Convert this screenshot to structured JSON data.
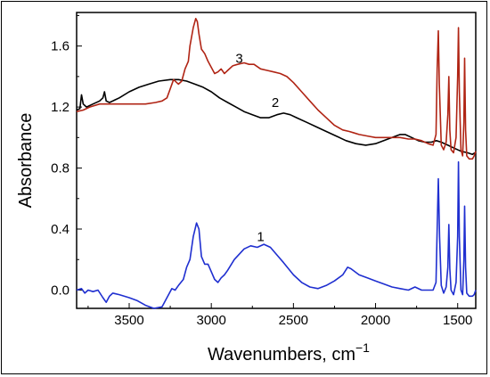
{
  "chart_data": {
    "type": "line",
    "xlabel": "Wavenumbers, cm",
    "xlabel_superscript": "−1",
    "ylabel": "Absorbance",
    "xlim": [
      3820,
      1390
    ],
    "ylim": [
      -0.12,
      1.82
    ],
    "x_reversed": true,
    "x_ticks": [
      3500,
      3000,
      2500,
      2000,
      1500
    ],
    "x_tick_labels": [
      "3500",
      "3000",
      "2500",
      "2000",
      "1500"
    ],
    "y_ticks": [
      0.0,
      0.4,
      0.8,
      1.2,
      1.6
    ],
    "y_tick_labels": [
      "0.0",
      "0.4",
      "0.8",
      "1.2",
      "1.6"
    ],
    "grid": false,
    "series": [
      {
        "label": "1",
        "color": "#1f2fd0",
        "label_at": [
          2700,
          0.32
        ],
        "points": [
          [
            3820,
            0.0
          ],
          [
            3790,
            0.01
          ],
          [
            3770,
            -0.02
          ],
          [
            3750,
            0.0
          ],
          [
            3720,
            -0.01
          ],
          [
            3690,
            0.0
          ],
          [
            3660,
            -0.05
          ],
          [
            3640,
            -0.08
          ],
          [
            3620,
            -0.04
          ],
          [
            3600,
            -0.02
          ],
          [
            3560,
            -0.03
          ],
          [
            3500,
            -0.05
          ],
          [
            3450,
            -0.07
          ],
          [
            3400,
            -0.1
          ],
          [
            3350,
            -0.12
          ],
          [
            3300,
            -0.11
          ],
          [
            3270,
            -0.05
          ],
          [
            3240,
            0.01
          ],
          [
            3220,
            0.0
          ],
          [
            3200,
            0.03
          ],
          [
            3170,
            0.07
          ],
          [
            3150,
            0.15
          ],
          [
            3130,
            0.2
          ],
          [
            3110,
            0.35
          ],
          [
            3090,
            0.44
          ],
          [
            3075,
            0.4
          ],
          [
            3060,
            0.22
          ],
          [
            3040,
            0.17
          ],
          [
            3020,
            0.17
          ],
          [
            3000,
            0.12
          ],
          [
            2980,
            0.07
          ],
          [
            2960,
            0.05
          ],
          [
            2940,
            0.08
          ],
          [
            2920,
            0.1
          ],
          [
            2900,
            0.13
          ],
          [
            2860,
            0.2
          ],
          [
            2800,
            0.27
          ],
          [
            2760,
            0.29
          ],
          [
            2720,
            0.28
          ],
          [
            2680,
            0.3
          ],
          [
            2640,
            0.28
          ],
          [
            2600,
            0.23
          ],
          [
            2560,
            0.18
          ],
          [
            2500,
            0.1
          ],
          [
            2450,
            0.05
          ],
          [
            2400,
            0.02
          ],
          [
            2350,
            0.01
          ],
          [
            2300,
            0.03
          ],
          [
            2250,
            0.06
          ],
          [
            2200,
            0.1
          ],
          [
            2170,
            0.15
          ],
          [
            2150,
            0.14
          ],
          [
            2100,
            0.1
          ],
          [
            2050,
            0.08
          ],
          [
            2000,
            0.06
          ],
          [
            1950,
            0.04
          ],
          [
            1900,
            0.02
          ],
          [
            1850,
            0.01
          ],
          [
            1800,
            0.0
          ],
          [
            1760,
            0.02
          ],
          [
            1720,
            0.0
          ],
          [
            1700,
            0.0
          ],
          [
            1680,
            0.0
          ],
          [
            1650,
            0.0
          ],
          [
            1632,
            0.05
          ],
          [
            1625,
            0.4
          ],
          [
            1618,
            0.73
          ],
          [
            1610,
            0.35
          ],
          [
            1600,
            0.03
          ],
          [
            1585,
            -0.02
          ],
          [
            1570,
            0.02
          ],
          [
            1560,
            0.15
          ],
          [
            1554,
            0.43
          ],
          [
            1548,
            0.14
          ],
          [
            1540,
            0.0
          ],
          [
            1525,
            -0.03
          ],
          [
            1510,
            0.05
          ],
          [
            1500,
            0.35
          ],
          [
            1495,
            0.84
          ],
          [
            1490,
            0.35
          ],
          [
            1480,
            0.0
          ],
          [
            1470,
            -0.03
          ],
          [
            1462,
            0.2
          ],
          [
            1458,
            0.55
          ],
          [
            1452,
            0.15
          ],
          [
            1445,
            -0.02
          ],
          [
            1430,
            -0.04
          ],
          [
            1410,
            -0.04
          ],
          [
            1400,
            -0.03
          ],
          [
            1390,
            0.0
          ]
        ]
      },
      {
        "label": "2",
        "color": "#000000",
        "label_at": [
          2610,
          1.2
        ],
        "points": [
          [
            3820,
            1.18
          ],
          [
            3800,
            1.19
          ],
          [
            3790,
            1.28
          ],
          [
            3780,
            1.22
          ],
          [
            3760,
            1.2
          ],
          [
            3720,
            1.22
          ],
          [
            3680,
            1.24
          ],
          [
            3660,
            1.26
          ],
          [
            3650,
            1.3
          ],
          [
            3640,
            1.24
          ],
          [
            3620,
            1.23
          ],
          [
            3560,
            1.26
          ],
          [
            3500,
            1.3
          ],
          [
            3440,
            1.33
          ],
          [
            3380,
            1.35
          ],
          [
            3320,
            1.37
          ],
          [
            3250,
            1.38
          ],
          [
            3200,
            1.38
          ],
          [
            3150,
            1.37
          ],
          [
            3100,
            1.35
          ],
          [
            3050,
            1.33
          ],
          [
            3000,
            1.3
          ],
          [
            2950,
            1.26
          ],
          [
            2900,
            1.23
          ],
          [
            2850,
            1.2
          ],
          [
            2800,
            1.17
          ],
          [
            2750,
            1.15
          ],
          [
            2700,
            1.13
          ],
          [
            2650,
            1.13
          ],
          [
            2600,
            1.15
          ],
          [
            2560,
            1.16
          ],
          [
            2520,
            1.15
          ],
          [
            2480,
            1.13
          ],
          [
            2420,
            1.1
          ],
          [
            2360,
            1.07
          ],
          [
            2300,
            1.04
          ],
          [
            2240,
            1.01
          ],
          [
            2180,
            0.98
          ],
          [
            2120,
            0.96
          ],
          [
            2060,
            0.95
          ],
          [
            2000,
            0.96
          ],
          [
            1950,
            0.98
          ],
          [
            1900,
            1.0
          ],
          [
            1850,
            1.02
          ],
          [
            1820,
            1.02
          ],
          [
            1780,
            1.0
          ],
          [
            1740,
            0.98
          ],
          [
            1700,
            0.97
          ],
          [
            1660,
            0.97
          ],
          [
            1630,
            0.98
          ],
          [
            1600,
            0.97
          ],
          [
            1560,
            0.95
          ],
          [
            1520,
            0.93
          ],
          [
            1480,
            0.91
          ],
          [
            1440,
            0.9
          ],
          [
            1410,
            0.89
          ],
          [
            1395,
            0.9
          ]
        ]
      },
      {
        "label": "3",
        "color": "#b02414",
        "label_at": [
          2830,
          1.49
        ],
        "points": [
          [
            3820,
            1.17
          ],
          [
            3780,
            1.18
          ],
          [
            3740,
            1.2
          ],
          [
            3680,
            1.22
          ],
          [
            3600,
            1.22
          ],
          [
            3500,
            1.22
          ],
          [
            3400,
            1.22
          ],
          [
            3340,
            1.23
          ],
          [
            3300,
            1.24
          ],
          [
            3270,
            1.26
          ],
          [
            3250,
            1.32
          ],
          [
            3230,
            1.38
          ],
          [
            3200,
            1.35
          ],
          [
            3180,
            1.37
          ],
          [
            3160,
            1.45
          ],
          [
            3140,
            1.5
          ],
          [
            3130,
            1.6
          ],
          [
            3110,
            1.72
          ],
          [
            3095,
            1.78
          ],
          [
            3085,
            1.76
          ],
          [
            3075,
            1.68
          ],
          [
            3060,
            1.58
          ],
          [
            3040,
            1.55
          ],
          [
            3020,
            1.5
          ],
          [
            3000,
            1.46
          ],
          [
            2980,
            1.42
          ],
          [
            2960,
            1.43
          ],
          [
            2940,
            1.45
          ],
          [
            2920,
            1.42
          ],
          [
            2900,
            1.44
          ],
          [
            2870,
            1.47
          ],
          [
            2840,
            1.48
          ],
          [
            2800,
            1.49
          ],
          [
            2770,
            1.48
          ],
          [
            2740,
            1.48
          ],
          [
            2700,
            1.45
          ],
          [
            2660,
            1.44
          ],
          [
            2620,
            1.43
          ],
          [
            2580,
            1.42
          ],
          [
            2540,
            1.4
          ],
          [
            2500,
            1.36
          ],
          [
            2450,
            1.3
          ],
          [
            2400,
            1.24
          ],
          [
            2350,
            1.18
          ],
          [
            2300,
            1.13
          ],
          [
            2250,
            1.08
          ],
          [
            2200,
            1.05
          ],
          [
            2160,
            1.04
          ],
          [
            2130,
            1.03
          ],
          [
            2100,
            1.02
          ],
          [
            2050,
            1.01
          ],
          [
            2000,
            1.0
          ],
          [
            1950,
            1.0
          ],
          [
            1900,
            1.0
          ],
          [
            1850,
            1.0
          ],
          [
            1800,
            0.99
          ],
          [
            1760,
            0.99
          ],
          [
            1720,
            0.98
          ],
          [
            1680,
            0.96
          ],
          [
            1650,
            0.95
          ],
          [
            1632,
            1.02
          ],
          [
            1625,
            1.45
          ],
          [
            1618,
            1.7
          ],
          [
            1612,
            1.35
          ],
          [
            1600,
            0.95
          ],
          [
            1585,
            0.92
          ],
          [
            1570,
            0.97
          ],
          [
            1560,
            1.15
          ],
          [
            1554,
            1.4
          ],
          [
            1548,
            1.05
          ],
          [
            1540,
            0.92
          ],
          [
            1525,
            0.9
          ],
          [
            1510,
            1.0
          ],
          [
            1500,
            1.4
          ],
          [
            1495,
            1.72
          ],
          [
            1490,
            1.3
          ],
          [
            1480,
            0.92
          ],
          [
            1470,
            0.88
          ],
          [
            1462,
            1.1
          ],
          [
            1458,
            1.52
          ],
          [
            1452,
            1.05
          ],
          [
            1445,
            0.88
          ],
          [
            1430,
            0.86
          ],
          [
            1410,
            0.86
          ],
          [
            1400,
            0.88
          ],
          [
            1390,
            0.91
          ]
        ]
      }
    ]
  }
}
